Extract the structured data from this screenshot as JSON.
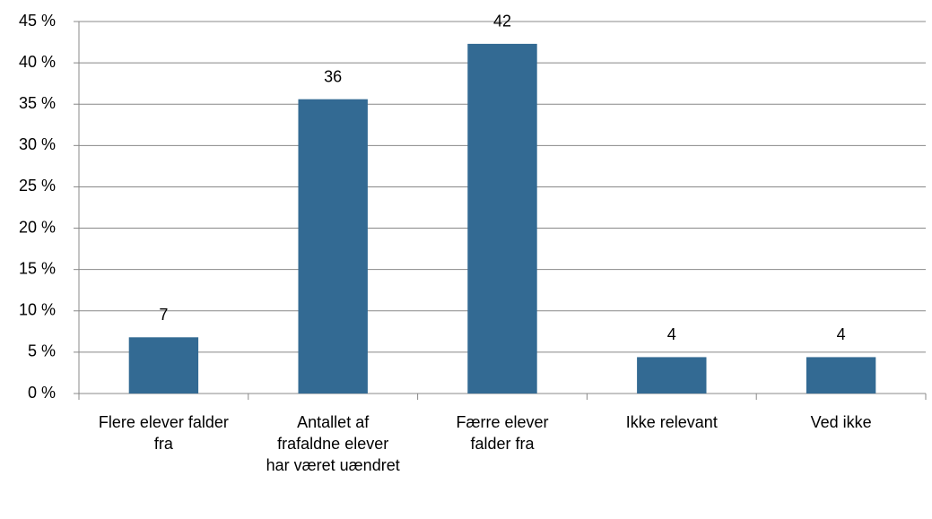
{
  "chart_data": {
    "type": "bar",
    "categories": [
      "Flere elever falder fra",
      "Antallet af frafaldne elever har været uændret",
      "Færre elever falder fra",
      "Ikke relevant",
      "Ved ikke"
    ],
    "values": [
      6.8,
      35.6,
      42.3,
      4.4,
      4.4
    ],
    "value_labels": [
      "7",
      "36",
      "42",
      "4",
      "4"
    ],
    "color": "#336a93",
    "ylim": [
      0,
      45
    ],
    "yticks": [
      {
        "value": 0,
        "label": "0 %"
      },
      {
        "value": 5,
        "label": "5 %"
      },
      {
        "value": 10,
        "label": "10 %"
      },
      {
        "value": 15,
        "label": "15 %"
      },
      {
        "value": 20,
        "label": "20 %"
      },
      {
        "value": 25,
        "label": "25 %"
      },
      {
        "value": 30,
        "label": "30 %"
      },
      {
        "value": 35,
        "label": "35 %"
      },
      {
        "value": 40,
        "label": "40 %"
      },
      {
        "value": 45,
        "label": "45 %"
      }
    ],
    "grid": true
  }
}
